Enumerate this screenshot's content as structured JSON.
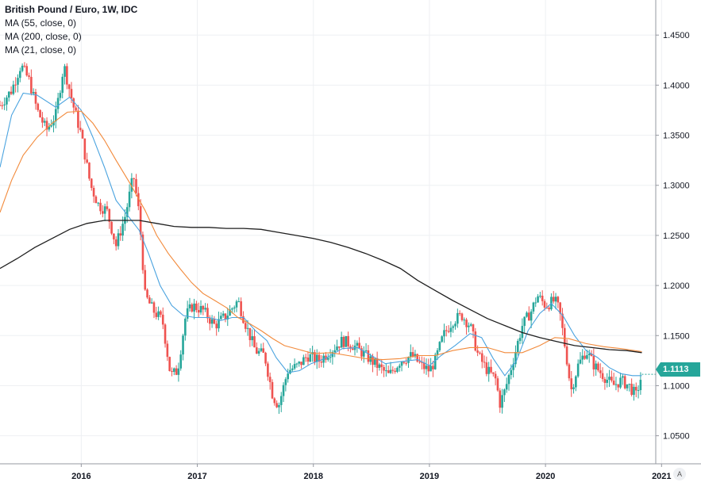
{
  "legend": {
    "title": "British Pound / Euro, 1W, IDC",
    "ma1": "MA (55, close, 0)",
    "ma2": "MA (200, close, 0)",
    "ma3": "MA (21, close, 0)"
  },
  "last_price_label": "1.1113",
  "auto_button": "A",
  "colors": {
    "up": "#26a69a",
    "down": "#ef5350",
    "ma21": "#4aa3df",
    "ma55": "#f28a3b",
    "ma200": "#1f1f1f",
    "grid": "#eef0f3",
    "text": "#131722"
  },
  "chart_data": {
    "type": "candlestick",
    "symbol": "British Pound / Euro",
    "interval": "1W",
    "x_tick_labels": [
      "2016",
      "2017",
      "2018",
      "2019",
      "2020",
      "2021"
    ],
    "x_tick_values": [
      2016,
      2017,
      2018,
      2019,
      2020,
      2021
    ],
    "xlim": [
      2015.3,
      2020.95
    ],
    "y_tick_labels": [
      "1.4500",
      "1.4000",
      "1.3500",
      "1.3000",
      "1.2500",
      "1.2000",
      "1.1500",
      "1.1000",
      "1.0500"
    ],
    "y_tick_values": [
      1.45,
      1.4,
      1.35,
      1.3,
      1.25,
      1.2,
      1.15,
      1.1,
      1.05
    ],
    "ylim": [
      1.022,
      1.485
    ],
    "last_price": 1.1113,
    "close_path": [
      [
        2015.3,
        1.38
      ],
      [
        2015.4,
        1.395
      ],
      [
        2015.48,
        1.42
      ],
      [
        2015.55,
        1.405
      ],
      [
        2015.62,
        1.375
      ],
      [
        2015.7,
        1.355
      ],
      [
        2015.78,
        1.37
      ],
      [
        2015.85,
        1.42
      ],
      [
        2015.93,
        1.38
      ],
      [
        2016.0,
        1.35
      ],
      [
        2016.08,
        1.3
      ],
      [
        2016.15,
        1.28
      ],
      [
        2016.22,
        1.275
      ],
      [
        2016.3,
        1.24
      ],
      [
        2016.38,
        1.27
      ],
      [
        2016.45,
        1.31
      ],
      [
        2016.5,
        1.27
      ],
      [
        2016.55,
        1.19
      ],
      [
        2016.62,
        1.175
      ],
      [
        2016.7,
        1.165
      ],
      [
        2016.77,
        1.11
      ],
      [
        2016.83,
        1.115
      ],
      [
        2016.9,
        1.17
      ],
      [
        2016.96,
        1.18
      ],
      [
        2017.05,
        1.175
      ],
      [
        2017.15,
        1.16
      ],
      [
        2017.25,
        1.17
      ],
      [
        2017.35,
        1.185
      ],
      [
        2017.42,
        1.16
      ],
      [
        2017.5,
        1.135
      ],
      [
        2017.58,
        1.13
      ],
      [
        2017.65,
        1.09
      ],
      [
        2017.7,
        1.08
      ],
      [
        2017.78,
        1.115
      ],
      [
        2017.87,
        1.12
      ],
      [
        2017.95,
        1.13
      ],
      [
        2018.05,
        1.125
      ],
      [
        2018.15,
        1.135
      ],
      [
        2018.25,
        1.145
      ],
      [
        2018.35,
        1.14
      ],
      [
        2018.45,
        1.13
      ],
      [
        2018.55,
        1.12
      ],
      [
        2018.65,
        1.11
      ],
      [
        2018.75,
        1.125
      ],
      [
        2018.85,
        1.13
      ],
      [
        2018.93,
        1.12
      ],
      [
        2019.0,
        1.115
      ],
      [
        2019.05,
        1.125
      ],
      [
        2019.12,
        1.15
      ],
      [
        2019.2,
        1.165
      ],
      [
        2019.28,
        1.17
      ],
      [
        2019.35,
        1.16
      ],
      [
        2019.42,
        1.13
      ],
      [
        2019.5,
        1.115
      ],
      [
        2019.58,
        1.105
      ],
      [
        2019.6,
        1.08
      ],
      [
        2019.65,
        1.095
      ],
      [
        2019.72,
        1.125
      ],
      [
        2019.8,
        1.16
      ],
      [
        2019.88,
        1.175
      ],
      [
        2019.93,
        1.19
      ],
      [
        2020.0,
        1.18
      ],
      [
        2020.08,
        1.185
      ],
      [
        2020.12,
        1.175
      ],
      [
        2020.18,
        1.13
      ],
      [
        2020.22,
        1.095
      ],
      [
        2020.28,
        1.12
      ],
      [
        2020.35,
        1.135
      ],
      [
        2020.42,
        1.12
      ],
      [
        2020.5,
        1.11
      ],
      [
        2020.58,
        1.1
      ],
      [
        2020.65,
        1.105
      ],
      [
        2020.72,
        1.1
      ],
      [
        2020.78,
        1.09
      ],
      [
        2020.83,
        1.1113
      ]
    ],
    "series": [
      {
        "name": "MA (21, close, 0)",
        "color": "#4aa3df",
        "points": [
          [
            2015.3,
            1.318
          ],
          [
            2015.4,
            1.37
          ],
          [
            2015.5,
            1.392
          ],
          [
            2015.62,
            1.39
          ],
          [
            2015.78,
            1.378
          ],
          [
            2015.9,
            1.388
          ],
          [
            2016.0,
            1.375
          ],
          [
            2016.1,
            1.348
          ],
          [
            2016.2,
            1.318
          ],
          [
            2016.3,
            1.285
          ],
          [
            2016.4,
            1.27
          ],
          [
            2016.5,
            1.255
          ],
          [
            2016.58,
            1.232
          ],
          [
            2016.68,
            1.2
          ],
          [
            2016.78,
            1.18
          ],
          [
            2016.88,
            1.17
          ],
          [
            2016.98,
            1.168
          ],
          [
            2017.1,
            1.168
          ],
          [
            2017.2,
            1.165
          ],
          [
            2017.3,
            1.168
          ],
          [
            2017.4,
            1.168
          ],
          [
            2017.5,
            1.155
          ],
          [
            2017.6,
            1.145
          ],
          [
            2017.68,
            1.128
          ],
          [
            2017.78,
            1.113
          ],
          [
            2017.88,
            1.115
          ],
          [
            2017.98,
            1.122
          ],
          [
            2018.1,
            1.127
          ],
          [
            2018.25,
            1.137
          ],
          [
            2018.38,
            1.138
          ],
          [
            2018.5,
            1.13
          ],
          [
            2018.62,
            1.122
          ],
          [
            2018.75,
            1.124
          ],
          [
            2018.9,
            1.126
          ],
          [
            2019.0,
            1.12
          ],
          [
            2019.1,
            1.13
          ],
          [
            2019.22,
            1.14
          ],
          [
            2019.35,
            1.152
          ],
          [
            2019.45,
            1.148
          ],
          [
            2019.55,
            1.127
          ],
          [
            2019.65,
            1.11
          ],
          [
            2019.75,
            1.125
          ],
          [
            2019.85,
            1.155
          ],
          [
            2019.95,
            1.172
          ],
          [
            2020.05,
            1.182
          ],
          [
            2020.15,
            1.17
          ],
          [
            2020.25,
            1.15
          ],
          [
            2020.35,
            1.135
          ],
          [
            2020.45,
            1.128
          ],
          [
            2020.55,
            1.118
          ],
          [
            2020.65,
            1.112
          ],
          [
            2020.75,
            1.11
          ],
          [
            2020.83,
            1.11
          ]
        ]
      },
      {
        "name": "MA (55, close, 0)",
        "color": "#f28a3b",
        "points": [
          [
            2015.3,
            1.273
          ],
          [
            2015.4,
            1.305
          ],
          [
            2015.5,
            1.33
          ],
          [
            2015.62,
            1.348
          ],
          [
            2015.75,
            1.362
          ],
          [
            2015.88,
            1.373
          ],
          [
            2016.0,
            1.374
          ],
          [
            2016.1,
            1.362
          ],
          [
            2016.2,
            1.345
          ],
          [
            2016.3,
            1.325
          ],
          [
            2016.42,
            1.302
          ],
          [
            2016.55,
            1.275
          ],
          [
            2016.65,
            1.25
          ],
          [
            2016.75,
            1.232
          ],
          [
            2016.85,
            1.217
          ],
          [
            2016.95,
            1.203
          ],
          [
            2017.05,
            1.192
          ],
          [
            2017.15,
            1.185
          ],
          [
            2017.25,
            1.178
          ],
          [
            2017.35,
            1.168
          ],
          [
            2017.45,
            1.162
          ],
          [
            2017.55,
            1.155
          ],
          [
            2017.65,
            1.147
          ],
          [
            2017.75,
            1.14
          ],
          [
            2017.88,
            1.136
          ],
          [
            2018.0,
            1.132
          ],
          [
            2018.15,
            1.133
          ],
          [
            2018.3,
            1.13
          ],
          [
            2018.45,
            1.127
          ],
          [
            2018.6,
            1.126
          ],
          [
            2018.75,
            1.127
          ],
          [
            2018.9,
            1.13
          ],
          [
            2019.05,
            1.13
          ],
          [
            2019.2,
            1.135
          ],
          [
            2019.35,
            1.138
          ],
          [
            2019.5,
            1.138
          ],
          [
            2019.65,
            1.133
          ],
          [
            2019.8,
            1.133
          ],
          [
            2019.95,
            1.14
          ],
          [
            2020.08,
            1.148
          ],
          [
            2020.2,
            1.147
          ],
          [
            2020.35,
            1.142
          ],
          [
            2020.5,
            1.139
          ],
          [
            2020.65,
            1.137
          ],
          [
            2020.83,
            1.134
          ]
        ]
      },
      {
        "name": "MA (200, close, 0)",
        "color": "#1f1f1f",
        "points": [
          [
            2015.3,
            1.217
          ],
          [
            2015.45,
            1.227
          ],
          [
            2015.6,
            1.238
          ],
          [
            2015.75,
            1.247
          ],
          [
            2015.9,
            1.256
          ],
          [
            2016.05,
            1.262
          ],
          [
            2016.2,
            1.265
          ],
          [
            2016.35,
            1.265
          ],
          [
            2016.5,
            1.265
          ],
          [
            2016.65,
            1.262
          ],
          [
            2016.8,
            1.259
          ],
          [
            2016.95,
            1.258
          ],
          [
            2017.1,
            1.258
          ],
          [
            2017.25,
            1.257
          ],
          [
            2017.4,
            1.257
          ],
          [
            2017.55,
            1.256
          ],
          [
            2017.7,
            1.253
          ],
          [
            2017.85,
            1.25
          ],
          [
            2018.0,
            1.247
          ],
          [
            2018.15,
            1.243
          ],
          [
            2018.3,
            1.238
          ],
          [
            2018.45,
            1.232
          ],
          [
            2018.6,
            1.225
          ],
          [
            2018.75,
            1.217
          ],
          [
            2018.9,
            1.205
          ],
          [
            2019.05,
            1.195
          ],
          [
            2019.2,
            1.185
          ],
          [
            2019.35,
            1.176
          ],
          [
            2019.5,
            1.167
          ],
          [
            2019.65,
            1.16
          ],
          [
            2019.8,
            1.153
          ],
          [
            2019.95,
            1.148
          ],
          [
            2020.1,
            1.144
          ],
          [
            2020.25,
            1.14
          ],
          [
            2020.4,
            1.138
          ],
          [
            2020.55,
            1.136
          ],
          [
            2020.7,
            1.135
          ],
          [
            2020.83,
            1.133
          ]
        ]
      }
    ]
  }
}
